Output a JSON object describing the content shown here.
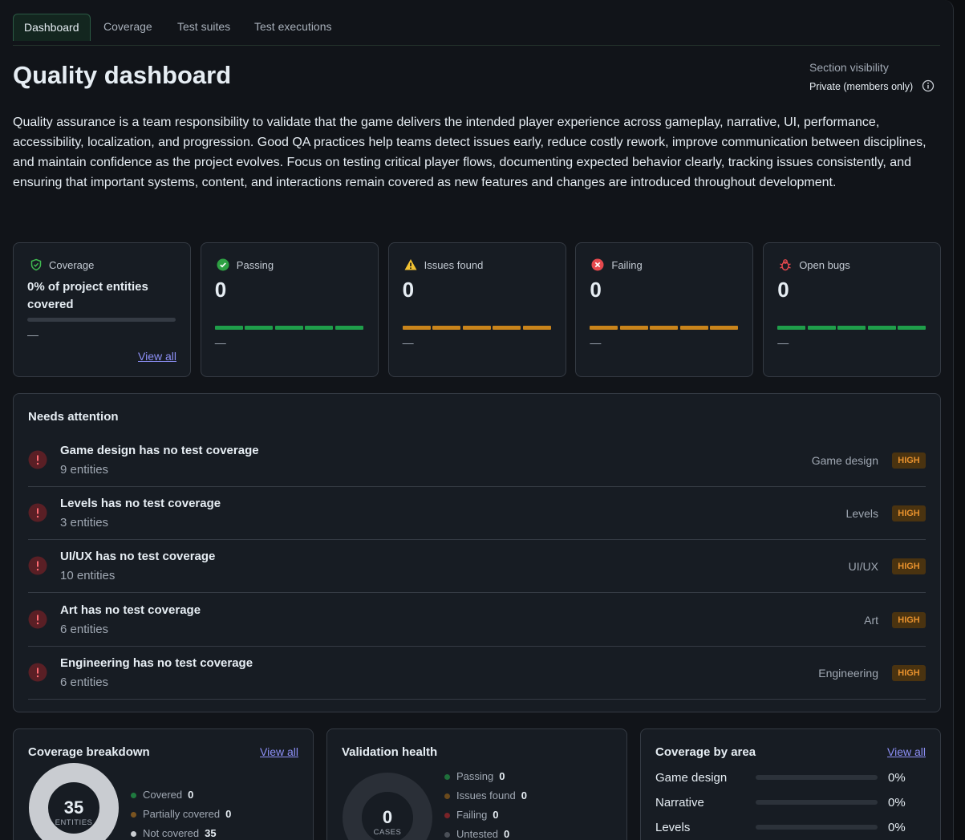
{
  "tabs": [
    "Dashboard",
    "Coverage",
    "Test suites",
    "Test executions"
  ],
  "header": {
    "title": "Quality dashboard",
    "visibility_label": "Section visibility",
    "visibility_value": "Private (members only)"
  },
  "description": "Quality assurance is a team responsibility to validate that the game delivers the intended player experience across gameplay, narrative, UI, performance, accessibility, localization, and progression. Good QA practices help teams detect issues early, reduce costly rework, improve communication between disciplines, and maintain confidence as the project evolves. Focus on testing critical player flows, documenting expected behavior clearly, tracking issues consistently, and ensuring that important systems, content, and interactions remain covered as new features and changes are introduced throughout development.",
  "stat_cards": [
    {
      "label": "Coverage",
      "value": "0% of project entities covered",
      "footer": "—",
      "link": "View all"
    },
    {
      "label": "Passing",
      "value": 0,
      "footer": "—"
    },
    {
      "label": "Issues found",
      "value": 0,
      "footer": "—"
    },
    {
      "label": "Failing",
      "value": 0,
      "footer": "—"
    },
    {
      "label": "Open bugs",
      "value": 0,
      "footer": "—"
    }
  ],
  "attention": {
    "title": "Needs attention",
    "items": [
      {
        "title": "Game design has no test coverage",
        "subtitle": "9 entities",
        "area": "Game design",
        "severity": "HIGH"
      },
      {
        "title": "Levels has no test coverage",
        "subtitle": "3 entities",
        "area": "Levels",
        "severity": "HIGH"
      },
      {
        "title": "UI/UX has no test coverage",
        "subtitle": "10 entities",
        "area": "UI/UX",
        "severity": "HIGH"
      },
      {
        "title": "Art has no test coverage",
        "subtitle": "6 entities",
        "area": "Art",
        "severity": "HIGH"
      },
      {
        "title": "Engineering has no test coverage",
        "subtitle": "6 entities",
        "area": "Engineering",
        "severity": "HIGH"
      }
    ]
  },
  "coverage_breakdown": {
    "title": "Coverage breakdown",
    "link": "View all",
    "total": 35,
    "total_label": "ENTITIES",
    "legend": [
      {
        "label": "Covered",
        "value": 0,
        "color": "#1f7a3f"
      },
      {
        "label": "Partially covered",
        "value": 0,
        "color": "#7a5420"
      },
      {
        "label": "Not covered",
        "value": 35,
        "color": "#c9ccd1"
      }
    ]
  },
  "validation_health": {
    "title": "Validation health",
    "total": 0,
    "total_label": "CASES",
    "legend": [
      {
        "label": "Passing",
        "value": 0,
        "color": "#1f6f3b"
      },
      {
        "label": "Issues found",
        "value": 0,
        "color": "#6b4a1c"
      },
      {
        "label": "Failing",
        "value": 0,
        "color": "#7a2328"
      },
      {
        "label": "Untested",
        "value": 0,
        "color": "#4a4f57"
      }
    ]
  },
  "coverage_by_area": {
    "title": "Coverage by area",
    "link": "View all",
    "rows": [
      {
        "area": "Game design",
        "percent": "0%"
      },
      {
        "area": "Narrative",
        "percent": "0%"
      },
      {
        "area": "Levels",
        "percent": "0%"
      }
    ]
  }
}
